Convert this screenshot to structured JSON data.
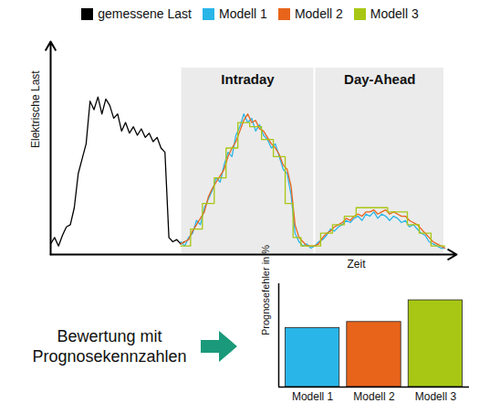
{
  "chart_data": [
    {
      "type": "line",
      "xlabel": "Zeit",
      "ylabel": "Elektrische Last",
      "legend": "top",
      "tick_labels": false,
      "xlim": [
        0,
        103
      ],
      "ylim": [
        0,
        100
      ],
      "xticks": [],
      "yticks": [],
      "regions": [
        {
          "label": "Intraday",
          "x": [
            33,
            67
          ],
          "y": [
            0,
            88
          ]
        },
        {
          "label": "Day-Ahead",
          "x": [
            67,
            100
          ],
          "y": [
            0,
            88
          ]
        }
      ],
      "x": [
        0,
        1,
        2,
        3,
        4,
        5,
        6,
        7,
        8,
        9,
        10,
        11,
        12,
        13,
        14,
        15,
        16,
        17,
        18,
        19,
        20,
        21,
        22,
        23,
        24,
        25,
        26,
        27,
        28,
        29,
        30,
        31,
        32,
        33,
        34,
        35,
        36,
        37,
        38,
        39,
        40,
        41,
        42,
        43,
        44,
        45,
        46,
        47,
        48,
        49,
        50,
        51,
        52,
        53,
        54,
        55,
        56,
        57,
        58,
        59,
        60,
        61,
        62,
        63,
        64,
        65,
        66,
        67,
        68,
        69,
        70,
        71,
        72,
        73,
        74,
        75,
        76,
        77,
        78,
        79,
        80,
        81,
        82,
        83,
        84,
        85,
        86,
        87,
        88,
        89,
        90,
        91,
        92,
        93,
        94,
        95,
        96,
        97,
        98,
        99,
        100
      ],
      "series": [
        {
          "name": "gemessene Last",
          "color": "#000000",
          "line_style": "solid",
          "values": [
            5,
            8,
            4,
            9,
            13,
            14,
            22,
            38,
            45,
            52,
            72,
            68,
            74,
            66,
            73,
            70,
            64,
            66,
            58,
            62,
            57,
            60,
            56,
            59,
            55,
            57,
            53,
            55,
            50,
            48,
            8,
            6,
            7,
            5,
            6,
            null,
            null,
            null,
            null,
            null,
            null,
            null,
            null,
            null,
            null,
            null,
            null,
            null,
            null,
            null,
            null,
            null,
            null,
            null,
            null,
            null,
            null,
            null,
            null,
            null,
            null,
            null,
            null,
            null,
            null,
            null,
            null,
            null,
            null,
            null,
            null,
            null,
            null,
            null,
            null,
            null,
            null,
            null,
            null,
            null,
            null,
            null,
            null,
            null,
            null,
            null,
            null,
            null,
            null,
            null,
            null,
            null,
            null,
            null,
            null,
            null,
            null,
            null,
            null,
            null,
            null
          ]
        },
        {
          "name": "Modell 1",
          "color": "#29b5e8",
          "line_style": "solid",
          "values": [
            null,
            null,
            null,
            null,
            null,
            null,
            null,
            null,
            null,
            null,
            null,
            null,
            null,
            null,
            null,
            null,
            null,
            null,
            null,
            null,
            null,
            null,
            null,
            null,
            null,
            null,
            null,
            null,
            null,
            null,
            null,
            null,
            null,
            6,
            4,
            8,
            10,
            16,
            14,
            22,
            26,
            30,
            36,
            34,
            42,
            48,
            46,
            56,
            60,
            66,
            62,
            64,
            58,
            61,
            56,
            54,
            50,
            52,
            46,
            40,
            38,
            28,
            10,
            6,
            4,
            5,
            3,
            4,
            6,
            7,
            9,
            12,
            11,
            13,
            14,
            16,
            15,
            17,
            18,
            16,
            19,
            18,
            20,
            17,
            19,
            18,
            16,
            18,
            17,
            15,
            16,
            13,
            14,
            12,
            10,
            9,
            6,
            5,
            4,
            3,
            3
          ]
        },
        {
          "name": "Modell 2",
          "color": "#e8641b",
          "line_style": "solid",
          "values": [
            null,
            null,
            null,
            null,
            null,
            null,
            null,
            null,
            null,
            null,
            null,
            null,
            null,
            null,
            null,
            null,
            null,
            null,
            null,
            null,
            null,
            null,
            null,
            null,
            null,
            null,
            null,
            null,
            null,
            null,
            null,
            null,
            null,
            5,
            6,
            7,
            11,
            14,
            17,
            20,
            27,
            31,
            34,
            37,
            40,
            46,
            50,
            53,
            58,
            63,
            66,
            62,
            63,
            59,
            58,
            55,
            52,
            50,
            47,
            42,
            40,
            32,
            14,
            8,
            6,
            4,
            4,
            4,
            5,
            8,
            10,
            11,
            13,
            14,
            15,
            17,
            16,
            18,
            19,
            18,
            20,
            20,
            21,
            19,
            20,
            21,
            19,
            20,
            19,
            18,
            18,
            16,
            15,
            14,
            12,
            10,
            8,
            6,
            5,
            4,
            3
          ]
        },
        {
          "name": "Modell 3",
          "color": "#a8c714",
          "line_style": "step",
          "values": [
            null,
            null,
            null,
            null,
            null,
            null,
            null,
            null,
            null,
            null,
            null,
            null,
            null,
            null,
            null,
            null,
            null,
            null,
            null,
            null,
            null,
            null,
            null,
            null,
            null,
            null,
            null,
            null,
            null,
            null,
            null,
            null,
            null,
            4,
            4,
            4,
            12,
            12,
            12,
            24,
            24,
            24,
            36,
            36,
            36,
            50,
            50,
            50,
            62,
            62,
            62,
            60,
            60,
            60,
            54,
            54,
            54,
            46,
            46,
            46,
            24,
            24,
            8,
            8,
            4,
            4,
            4,
            4,
            4,
            10,
            10,
            10,
            14,
            14,
            14,
            18,
            18,
            18,
            22,
            22,
            22,
            22,
            22,
            22,
            22,
            22,
            20,
            20,
            20,
            20,
            20,
            14,
            14,
            14,
            10,
            10,
            10,
            4,
            4,
            4,
            4
          ]
        }
      ]
    },
    {
      "type": "bar",
      "annotation": "Bewertung mit Prognosekennzahlen",
      "ylabel": "Prognosefehler in %",
      "tick_labels": "x",
      "categories": [
        "Modell 1",
        "Modell 2",
        "Modell 3"
      ],
      "values": [
        57,
        63,
        84
      ],
      "colors": [
        "#29b5e8",
        "#e8641b",
        "#a8c714"
      ],
      "ylim": [
        0,
        100
      ],
      "yticks": []
    }
  ]
}
